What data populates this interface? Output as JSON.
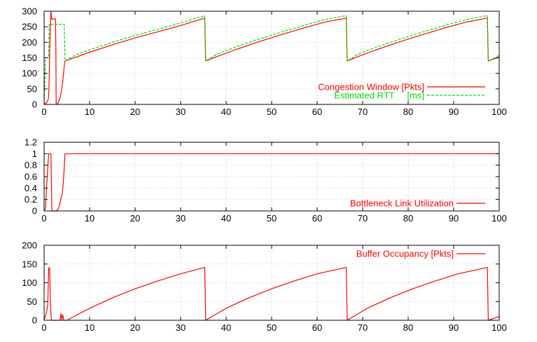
{
  "chart_data": [
    {
      "type": "line",
      "xlim": [
        0,
        100
      ],
      "ylim": [
        0,
        300
      ],
      "xticks": [
        "0",
        "10",
        "20",
        "30",
        "40",
        "50",
        "60",
        "70",
        "80",
        "90",
        "100"
      ],
      "yticks": [
        "0",
        "50",
        "100",
        "150",
        "200",
        "250",
        "300"
      ],
      "grid": true,
      "legend_position": "right",
      "series": [
        {
          "name": "Congestion Window [Pkts]",
          "color": "#ff0000",
          "style": "solid",
          "x": [
            0,
            0.5,
            0.9,
            1.0,
            1.1,
            1.2,
            1.3,
            1.5,
            1.7,
            2.5,
            2.6,
            2.65,
            3.0,
            3.5,
            4.0,
            4.4,
            4.6,
            7,
            10,
            15,
            20,
            25,
            30,
            35.3,
            35.5,
            38,
            42,
            47,
            52,
            57,
            62,
            66.4,
            66.6,
            69,
            73,
            78,
            83,
            88,
            93,
            97.4,
            97.6,
            99,
            100
          ],
          "y": [
            0,
            5,
            15,
            30,
            80,
            150,
            220,
            300,
            275,
            275,
            150,
            0,
            3,
            20,
            60,
            120,
            140,
            152,
            168,
            192,
            214,
            234,
            254,
            278,
            140,
            154,
            176,
            201,
            224,
            246,
            266,
            278,
            140,
            154,
            176,
            201,
            224,
            246,
            266,
            278,
            140,
            147,
            152
          ]
        },
        {
          "name": "Estimated RTT     [ms]",
          "color": "#00dd00",
          "style": "dashed",
          "x": [
            0,
            0.3,
            0.5,
            1.0,
            1.1,
            4.4,
            4.6,
            7,
            10,
            15,
            20,
            25,
            30,
            35.3,
            35.5,
            38,
            42,
            47,
            52,
            57,
            62,
            66.4,
            66.6,
            69,
            73,
            78,
            83,
            88,
            93,
            97.4,
            97.6,
            99,
            100
          ],
          "y": [
            0,
            140,
            150,
            150,
            258,
            258,
            140,
            160,
            176,
            200,
            222,
            242,
            262,
            286,
            140,
            162,
            184,
            209,
            232,
            254,
            274,
            286,
            140,
            162,
            184,
            209,
            232,
            254,
            274,
            286,
            140,
            150,
            158
          ]
        }
      ]
    },
    {
      "type": "line",
      "xlim": [
        0,
        100
      ],
      "ylim": [
        0,
        1.2
      ],
      "xticks": [
        "0",
        "10",
        "20",
        "30",
        "40",
        "50",
        "60",
        "70",
        "80",
        "90",
        "100"
      ],
      "yticks": [
        "0",
        "0.2",
        "0.4",
        "0.6",
        "0.8",
        "1",
        "1.2"
      ],
      "grid": true,
      "legend_position": "right",
      "series": [
        {
          "name": "Bottleneck Link Utilization",
          "color": "#ff0000",
          "style": "solid",
          "x": [
            0,
            0.3,
            0.6,
            1.0,
            1.2,
            1.5,
            1.7,
            2.0,
            2.5,
            3.0,
            3.4,
            3.8,
            4.0,
            4.3,
            4.6,
            4.8,
            100
          ],
          "y": [
            0,
            0.05,
            0.5,
            1.0,
            1.0,
            1.0,
            0.0,
            0.0,
            0.0,
            0.02,
            0.1,
            0.25,
            0.3,
            0.6,
            1.0,
            1.0,
            1.0
          ]
        }
      ]
    },
    {
      "type": "line",
      "xlim": [
        0,
        100
      ],
      "ylim": [
        0,
        200
      ],
      "xticks": [
        "0",
        "10",
        "20",
        "30",
        "40",
        "50",
        "60",
        "70",
        "80",
        "90",
        "100"
      ],
      "yticks": [
        "0",
        "50",
        "100",
        "150",
        "200"
      ],
      "grid": true,
      "legend_position": "top-right",
      "series": [
        {
          "name": "Buffer Occupancy [Pkts]",
          "color": "#ff0000",
          "style": "solid",
          "x": [
            0,
            0.5,
            0.8,
            1.0,
            1.2,
            1.4,
            1.6,
            2.0,
            3.5,
            3.7,
            3.9,
            4.1,
            4.3,
            4.5,
            5.0,
            10,
            15,
            20,
            25,
            30,
            35.3,
            35.5,
            40,
            45,
            50,
            55,
            60,
            66.4,
            66.6,
            71,
            76,
            81,
            86,
            91,
            97.4,
            97.6,
            100
          ],
          "y": [
            0,
            20,
            40,
            140,
            140,
            40,
            0,
            0,
            0,
            18,
            2,
            15,
            0,
            0,
            0,
            32,
            60,
            84,
            105,
            124,
            141,
            0,
            32,
            60,
            84,
            105,
            124,
            141,
            0,
            32,
            60,
            84,
            105,
            124,
            141,
            0,
            10
          ]
        }
      ]
    }
  ]
}
